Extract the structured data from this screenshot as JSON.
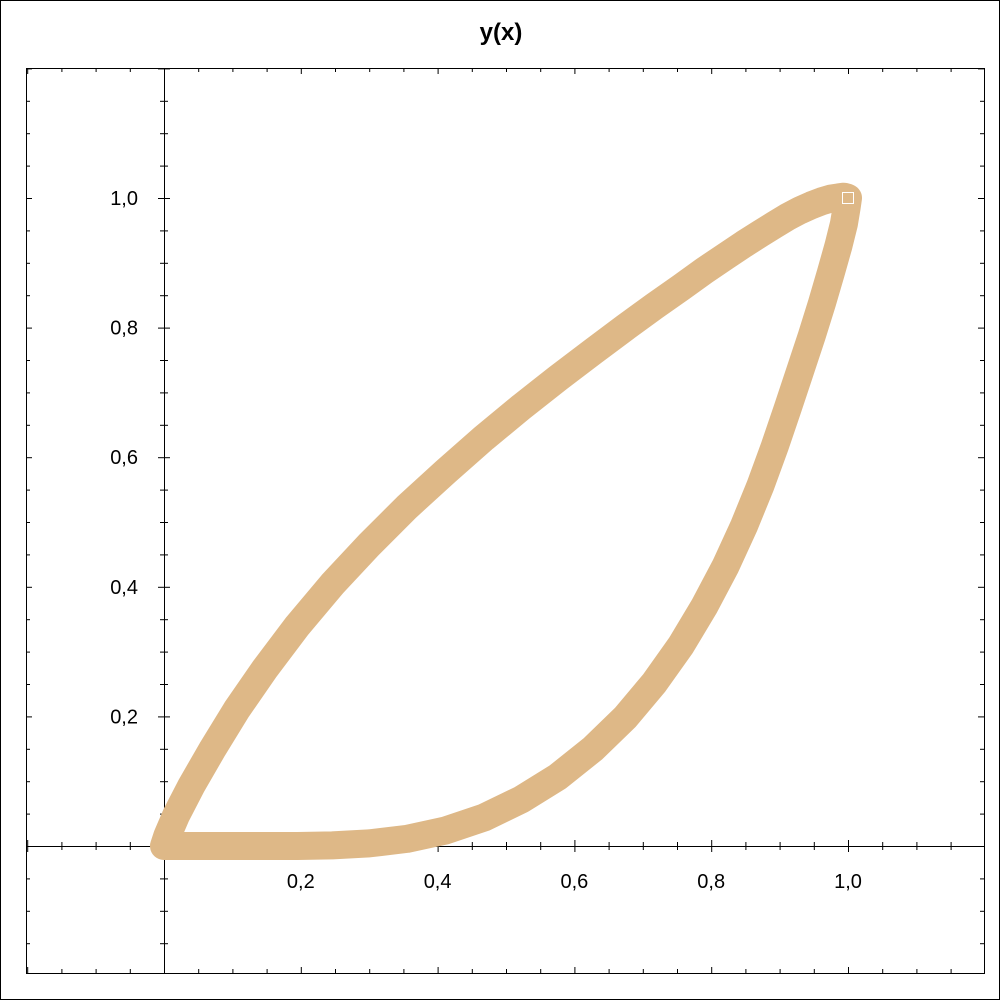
{
  "chart_data": {
    "type": "line",
    "title": "y(x)",
    "xlabel": "",
    "ylabel": "",
    "xlim": [
      -0.2,
      1.2
    ],
    "ylim": [
      -0.2,
      1.2
    ],
    "x_ticks": [
      {
        "value": 0.2,
        "label": "0,2"
      },
      {
        "value": 0.4,
        "label": "0,4"
      },
      {
        "value": 0.6,
        "label": "0,6"
      },
      {
        "value": 0.8,
        "label": "0,8"
      },
      {
        "value": 1.0,
        "label": "1,0"
      }
    ],
    "y_ticks": [
      {
        "value": 0.2,
        "label": "0,2"
      },
      {
        "value": 0.4,
        "label": "0,4"
      },
      {
        "value": 0.6,
        "label": "0,6"
      },
      {
        "value": 0.8,
        "label": "0,8"
      },
      {
        "value": 1.0,
        "label": "1,0"
      }
    ],
    "grid": false,
    "series": [
      {
        "color": "#deb887",
        "x": [
          0.0,
          0.005,
          0.018,
          0.04,
          0.07,
          0.106,
          0.148,
          0.195,
          0.246,
          0.3,
          0.355,
          0.412,
          0.468,
          0.523,
          0.576,
          0.627,
          0.674,
          0.717,
          0.756,
          0.79,
          0.821,
          0.848,
          0.872,
          0.893,
          0.912,
          0.93,
          0.947,
          0.962,
          0.975,
          0.986,
          0.994,
          0.998,
          1.0,
          0.998,
          0.994,
          0.986,
          0.975,
          0.962,
          0.947,
          0.93,
          0.912,
          0.893,
          0.872,
          0.848,
          0.821,
          0.79,
          0.756,
          0.717,
          0.674,
          0.627,
          0.576,
          0.523,
          0.468,
          0.412,
          0.355,
          0.3,
          0.246,
          0.195,
          0.148,
          0.106,
          0.07,
          0.04,
          0.018,
          0.005,
          0.0
        ],
        "y": [
          0.0,
          0.016,
          0.048,
          0.093,
          0.148,
          0.21,
          0.274,
          0.34,
          0.404,
          0.465,
          0.523,
          0.578,
          0.63,
          0.678,
          0.722,
          0.763,
          0.8,
          0.833,
          0.862,
          0.888,
          0.91,
          0.929,
          0.945,
          0.959,
          0.971,
          0.981,
          0.989,
          0.995,
          0.999,
          1.001,
          1.002,
          1.001,
          1.0,
          0.985,
          0.96,
          0.926,
          0.885,
          0.838,
          0.787,
          0.733,
          0.676,
          0.617,
          0.556,
          0.494,
          0.432,
          0.37,
          0.31,
          0.252,
          0.198,
          0.15,
          0.107,
          0.072,
          0.044,
          0.024,
          0.011,
          0.004,
          0.001,
          0.0,
          0.0,
          0.0,
          0.0,
          0.0,
          0.0,
          0.0,
          0.0
        ]
      }
    ]
  }
}
